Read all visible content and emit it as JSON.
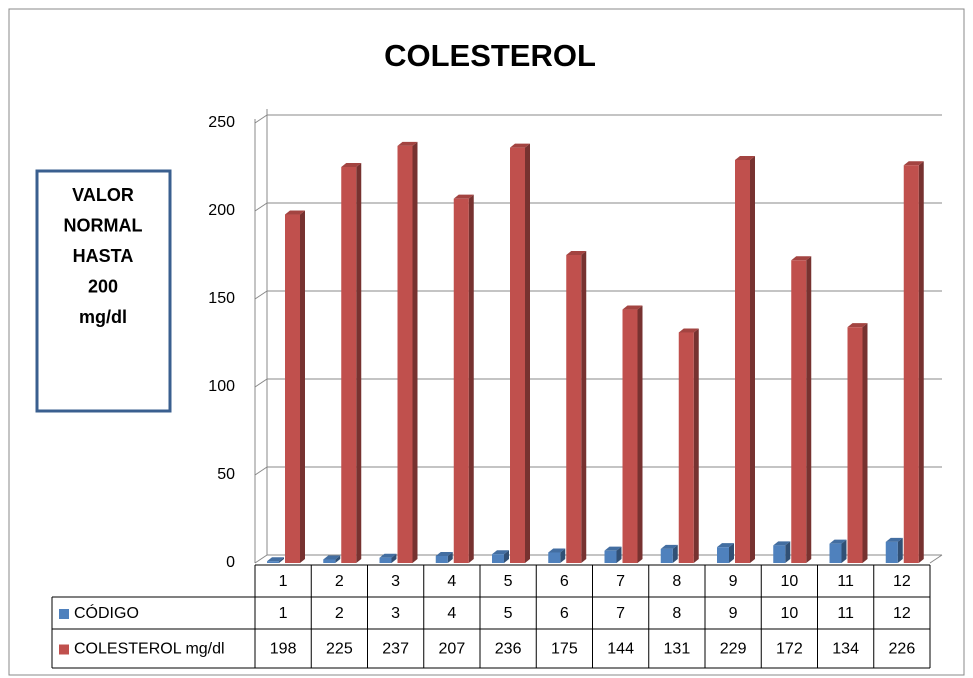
{
  "chart_data": {
    "type": "bar3d",
    "title": "COLESTEROL",
    "annotation": [
      "VALOR",
      "NORMAL",
      "HASTA",
      "200",
      "mg/dl"
    ],
    "categories": [
      "1",
      "2",
      "3",
      "4",
      "5",
      "6",
      "7",
      "8",
      "9",
      "10",
      "11",
      "12"
    ],
    "series": [
      {
        "name": "CÓDIGO",
        "color": "#4f81bd",
        "values": [
          1,
          2,
          3,
          4,
          5,
          6,
          7,
          8,
          9,
          10,
          11,
          12
        ]
      },
      {
        "name": "COLESTEROL mg/dl",
        "color": "#c0504d",
        "values": [
          198,
          225,
          237,
          207,
          236,
          175,
          144,
          131,
          229,
          172,
          134,
          226
        ]
      }
    ],
    "ylim": [
      0,
      250
    ],
    "yticks": [
      0,
      50,
      100,
      150,
      200,
      250
    ],
    "grid": true,
    "data_table": true
  }
}
